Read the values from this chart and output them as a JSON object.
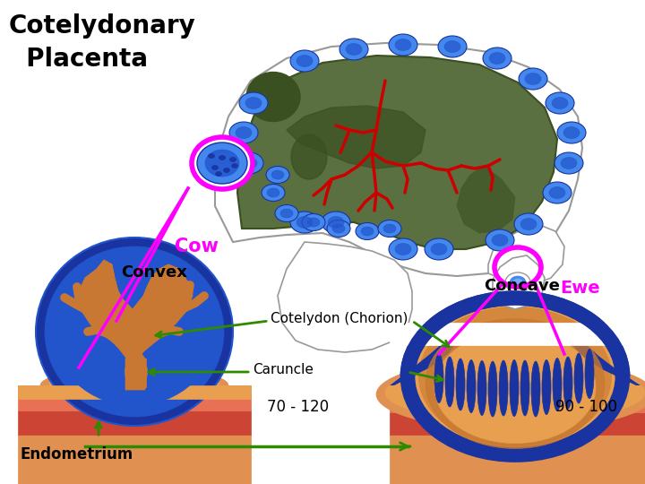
{
  "title_line1": "Cotelydonary",
  "title_line2": "  Placenta",
  "title_fontsize": 20,
  "bg_color": "#ffffff",
  "label_cow": "Cow",
  "label_cow_color": "#FF00FF",
  "label_ewe": "Ewe",
  "label_ewe_color": "#FF00FF",
  "label_convex": "Convex",
  "label_concave": "Concave",
  "label_cotelydon": "Cotelydon (Chorion)",
  "label_caruncle": "Caruncle",
  "label_70_120": "70 - 120",
  "label_90_100": "90 - 100",
  "label_endometrium": "Endometrium",
  "magenta": "#FF00FF",
  "green_arrow": "#2E8B00",
  "red_vessel": "#CC0000",
  "blue_dark": "#1933A0",
  "blue_mid": "#2255CC",
  "blue_light": "#4488EE",
  "orange": "#C87832",
  "orange_light": "#E8A050",
  "salmon_dark": "#CC4433",
  "salmon_light": "#E87055",
  "skin": "#E09050",
  "olive": "#5A7040",
  "olive_dark": "#3A5020",
  "gray_line": "#999999",
  "white": "#FFFFFF"
}
